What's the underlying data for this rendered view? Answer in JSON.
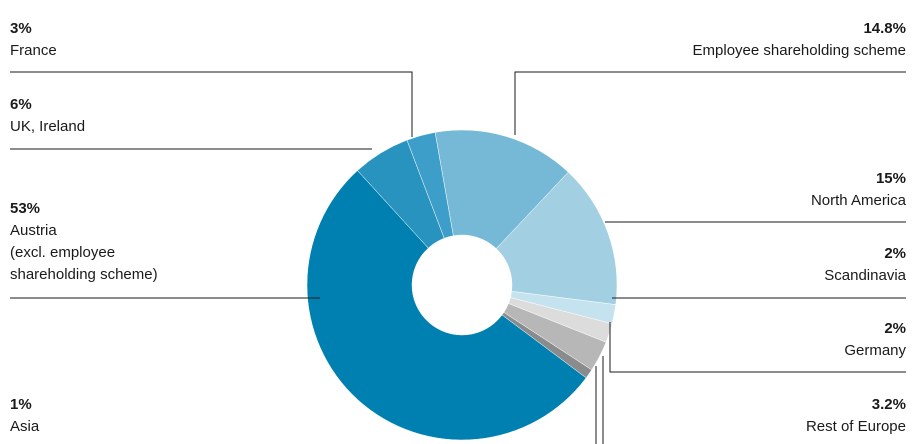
{
  "chart_data": {
    "type": "pie",
    "title": "",
    "donut": true,
    "slices": [
      {
        "name": "Employee shareholding scheme",
        "pct_label": "14.8%",
        "value": 14.8,
        "color": "#76b9d6"
      },
      {
        "name": "North America",
        "pct_label": "15%",
        "value": 15,
        "color": "#a3cfe2"
      },
      {
        "name": "Scandinavia",
        "pct_label": "2%",
        "value": 2,
        "color": "#c5e3ef"
      },
      {
        "name": "Germany",
        "pct_label": "2%",
        "value": 2,
        "color": "#dcdcdc"
      },
      {
        "name": "Rest of Europe",
        "pct_label": "3.2%",
        "value": 3.2,
        "color": "#b7b7b8"
      },
      {
        "name": "Asia",
        "pct_label": "1%",
        "value": 1,
        "color": "#8a8b8d"
      },
      {
        "name": "Austria (excl. employee shareholding scheme)",
        "pct_label": "53%",
        "value": 53,
        "color": "#0080b0"
      },
      {
        "name": "UK, Ireland",
        "pct_label": "6%",
        "value": 6,
        "color": "#2893bf"
      },
      {
        "name": "France",
        "pct_label": "3%",
        "value": 3,
        "color": "#3c9ec9"
      }
    ]
  },
  "labels": {
    "france": {
      "pct": "3%",
      "name": "France"
    },
    "uk": {
      "pct": "6%",
      "name": "UK, Ireland"
    },
    "austria": {
      "pct": "53%",
      "name_lines": [
        "Austria",
        "(excl. employee",
        "shareholding scheme)"
      ]
    },
    "asia": {
      "pct": "1%",
      "name": "Asia"
    },
    "employee": {
      "pct": "14.8%",
      "name": "Employee shareholding scheme"
    },
    "north_america": {
      "pct": "15%",
      "name": "North America"
    },
    "scandinavia": {
      "pct": "2%",
      "name": "Scandinavia"
    },
    "germany": {
      "pct": "2%",
      "name": "Germany"
    },
    "rest_europe": {
      "pct": "3.2%",
      "name": "Rest of Europe"
    }
  }
}
